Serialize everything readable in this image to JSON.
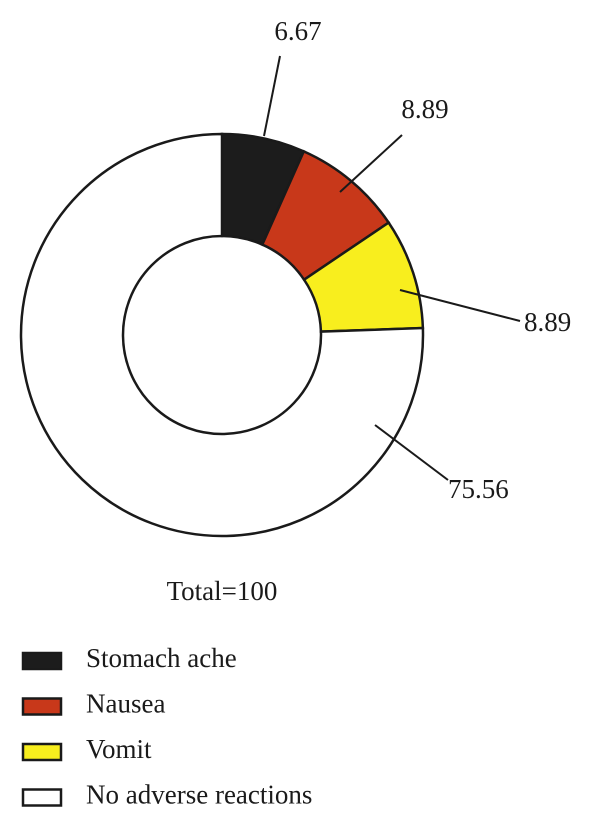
{
  "chart_data": {
    "type": "donut",
    "categories": [
      "Stomach ache",
      "Nausea",
      "Vomit",
      "No adverse reactions"
    ],
    "values": [
      6.67,
      8.89,
      8.89,
      75.56
    ],
    "colors": [
      "#1c1c1c",
      "#c8381a",
      "#f8ee1e",
      "#ffffff"
    ],
    "annotation": "Total=100"
  }
}
